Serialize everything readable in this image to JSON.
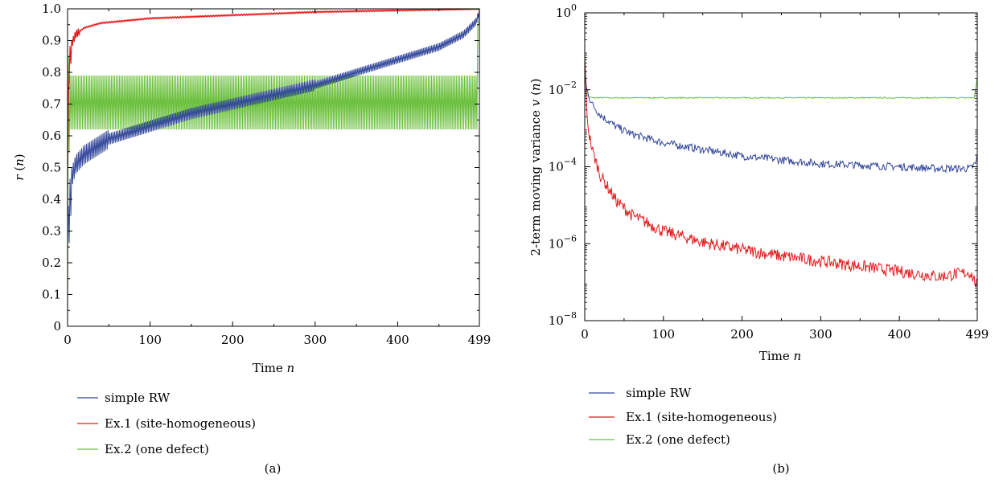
{
  "chart_data": [
    {
      "type": "line",
      "panel_label": "(a)",
      "xlabel": "Time n",
      "ylabel": "r (n)",
      "xlim": [
        0,
        499
      ],
      "ylim": [
        0,
        1.0
      ],
      "xticks": [
        0,
        100,
        200,
        300,
        400,
        499
      ],
      "xtick_labels": [
        "0",
        "100",
        "200",
        "300",
        "400",
        "499"
      ],
      "yticks": [
        0,
        0.1,
        0.2,
        0.3,
        0.4,
        0.5,
        0.6,
        0.7,
        0.8,
        0.9,
        1.0
      ],
      "ytick_labels": [
        "0",
        "0.1",
        "0.2",
        "0.3",
        "0.4",
        "0.5",
        "0.6",
        "0.7",
        "0.8",
        "0.9",
        "1.0"
      ],
      "legend_position": "below",
      "grid": false,
      "series": [
        {
          "name": "simple RW",
          "color": "#33479b",
          "x": [
            1,
            5,
            10,
            20,
            50,
            100,
            150,
            200,
            250,
            300,
            350,
            400,
            450,
            480,
            495,
            499
          ],
          "y": [
            0.3,
            0.47,
            0.51,
            0.54,
            0.59,
            0.63,
            0.67,
            0.7,
            0.73,
            0.76,
            0.8,
            0.84,
            0.88,
            0.92,
            0.96,
            0.99
          ]
        },
        {
          "name": "Ex.1 (site-homogeneous)",
          "color": "#e31a1c",
          "x": [
            0,
            2,
            5,
            10,
            20,
            40,
            100,
            200,
            300,
            400,
            499
          ],
          "y": [
            0.55,
            0.82,
            0.89,
            0.92,
            0.94,
            0.955,
            0.97,
            0.98,
            0.99,
            0.995,
            1.0
          ],
          "band": [
            [
              0,
              0.55
            ],
            [
              3,
              0.85
            ],
            [
              6,
              0.9
            ],
            [
              10,
              0.92
            ]
          ]
        },
        {
          "name": "Ex.2 (one defect)",
          "color": "#6abf3c",
          "x": [
            0,
            5,
            20,
            100,
            200,
            300,
            400,
            495,
            499
          ],
          "y": [
            0.7,
            0.7,
            0.7,
            0.7,
            0.7,
            0.7,
            0.7,
            0.7,
            1.0
          ],
          "band": [
            [
              0,
              0.0
            ],
            [
              5,
              0.62
            ],
            [
              20,
              0.62
            ]
          ]
        }
      ]
    },
    {
      "type": "line",
      "panel_label": "(b)",
      "xlabel": "Time n",
      "ylabel": "2-term moving variance v (n)",
      "xlim": [
        0,
        499
      ],
      "ylim": [
        1e-08,
        1
      ],
      "yscale": "log",
      "xticks": [
        0,
        100,
        200,
        300,
        400,
        499
      ],
      "xtick_labels": [
        "0",
        "100",
        "200",
        "300",
        "400",
        "499"
      ],
      "yticks": [
        1e-08,
        1e-06,
        0.0001,
        0.01,
        1
      ],
      "ytick_base": "10",
      "ytick_exponents": [
        "−8",
        "−6",
        "−4",
        "−2",
        "0"
      ],
      "legend_position": "below",
      "grid": false,
      "series": [
        {
          "name": "simple RW",
          "color": "#33479b",
          "x": [
            0,
            2,
            5,
            10,
            20,
            40,
            60,
            100,
            150,
            200,
            250,
            300,
            350,
            400,
            450,
            490,
            497,
            499
          ],
          "y": [
            0.05,
            0.012,
            0.007,
            0.004,
            0.0022,
            0.0011,
            0.0007,
            0.00042,
            0.00028,
            0.00019,
            0.00015,
            0.00012,
            0.00011,
            0.0001,
            9e-05,
            9e-05,
            0.00012,
            0.0002
          ]
        },
        {
          "name": "Ex.1 (site-homogeneous)",
          "color": "#e31a1c",
          "x": [
            0,
            3,
            5,
            10,
            20,
            40,
            60,
            100,
            150,
            200,
            250,
            300,
            350,
            400,
            450,
            490,
            499
          ],
          "y": [
            0.06,
            0.002,
            0.0008,
            0.00025,
            6e-05,
            1.3e-05,
            5.5e-06,
            2.1e-06,
            1.1e-06,
            7e-07,
            4.8e-07,
            3.5e-07,
            2.6e-07,
            1.9e-07,
            1.4e-07,
            1.8e-07,
            8e-08
          ]
        },
        {
          "name": "Ex.2 (one defect)",
          "color": "#6abf3c",
          "x": [
            0,
            2,
            5,
            10,
            50,
            100,
            200,
            300,
            400,
            495,
            499
          ],
          "y": [
            0.08,
            0.008,
            0.0065,
            0.0062,
            0.0062,
            0.0062,
            0.0062,
            0.0062,
            0.0062,
            0.0062,
            0.02
          ]
        }
      ]
    }
  ]
}
